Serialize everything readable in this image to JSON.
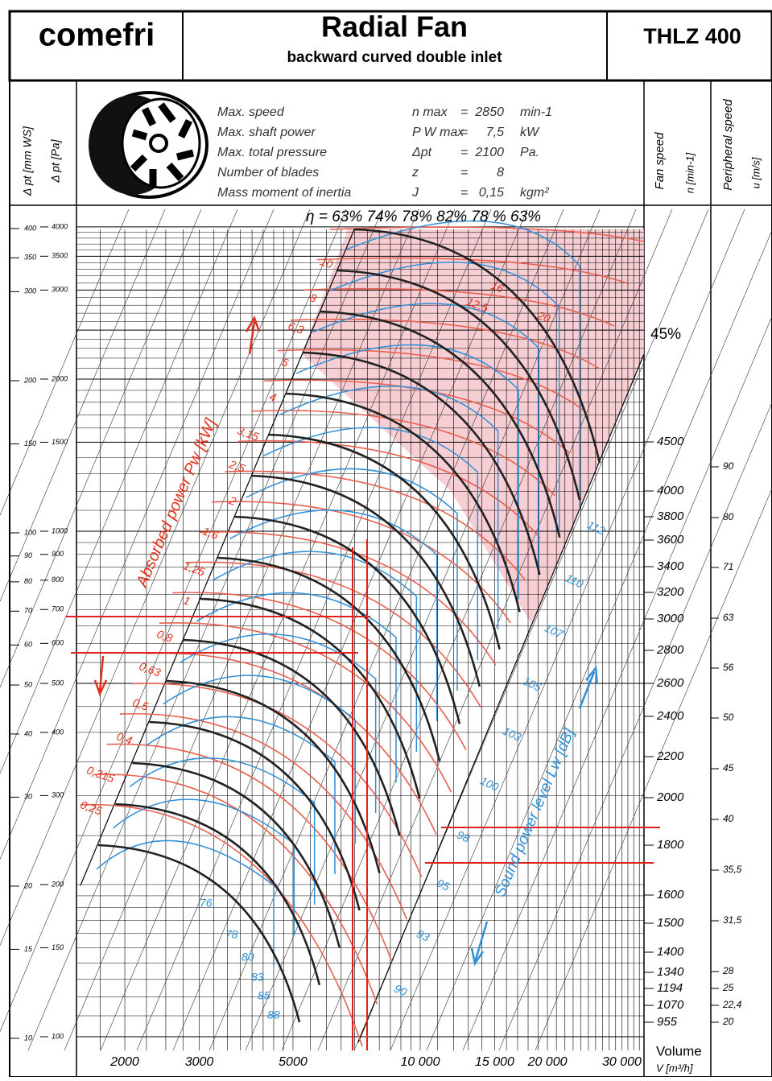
{
  "header": {
    "brand": "comefri",
    "title": "Radial Fan",
    "subtitle": "backward curved double inlet",
    "model": "THLZ 400"
  },
  "specs": {
    "rows": [
      [
        "Max. speed",
        "n max",
        "=",
        "2850",
        "min-1"
      ],
      [
        "Max. shaft power",
        "P W max",
        "=",
        "7,5",
        "kW"
      ],
      [
        "Max. total pressure",
        "Δpt",
        "=",
        "2100",
        "Pa."
      ],
      [
        "Number of blades",
        "z",
        "=",
        "8"
      ],
      [
        "Mass moment of inertia",
        "J",
        "=",
        "0,15",
        "kgm²"
      ]
    ]
  },
  "axes": {
    "left_mm": {
      "title": "Δ pt [mm WS]",
      "ticks": [
        "400",
        "350",
        "300",
        "200",
        "150",
        "100",
        "90",
        "80",
        "70",
        "60",
        "50",
        "40",
        "30",
        "20",
        "15",
        "10"
      ]
    },
    "left_pa": {
      "title": "Δ pt [Pa]",
      "ticks": [
        "4000",
        "3500",
        "3000",
        "2000",
        "1500",
        "1000",
        "900",
        "800",
        "700",
        "600",
        "500",
        "400",
        "300",
        "200",
        "150",
        "100"
      ]
    },
    "volume": {
      "title": "Volume",
      "unit": "V [m³/h]",
      "ticks": [
        "2000",
        "3000",
        "5000",
        "10 000",
        "15 000",
        "20 000",
        "30 000"
      ]
    },
    "fan_speed": {
      "title": "Fan speed",
      "unit": "n [min-1]",
      "ticks": [
        "4500",
        "4000",
        "3800",
        "3600",
        "3400",
        "3200",
        "3000",
        "2800",
        "2600",
        "2400",
        "2200",
        "2000",
        "1800",
        "1600",
        "1500",
        "1400",
        "1340",
        "1194",
        "1070",
        "955"
      ]
    },
    "peripheral": {
      "title": "Peripheral speed",
      "unit": "u [m/s]",
      "ticks": [
        "90",
        "80",
        "71",
        "63",
        "56",
        "50",
        "45",
        "40",
        "35,5",
        "31,5",
        "28",
        "25",
        "22,4",
        "20"
      ]
    }
  },
  "efficiency": {
    "row": "η = 63%  74%  78%  82%  78 %  63%",
    "side": "45%"
  },
  "power": {
    "title": "Absorbed power Pw [kW]",
    "labels": [
      "10",
      "8",
      "6,3",
      "5",
      "4",
      "3,15",
      "2,5",
      "2",
      "1,6",
      "1,25",
      "1",
      "0,8",
      "0,63",
      "0,5",
      "0,4",
      "0,315",
      "0,25",
      "12,5",
      "16",
      "20"
    ]
  },
  "sound": {
    "title": "Sound power level Lw [dB]",
    "labels": [
      "76",
      "78",
      "80",
      "83",
      "85",
      "88",
      "90",
      "93",
      "95",
      "98",
      "100",
      "103",
      "105",
      "107",
      "110",
      "112"
    ]
  }
}
